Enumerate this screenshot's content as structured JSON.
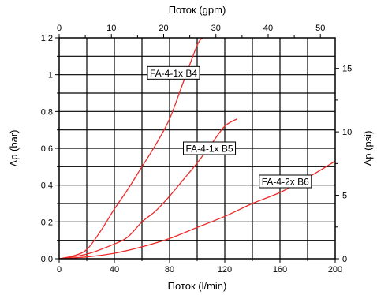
{
  "chart_data": {
    "type": "line",
    "xlabel_bottom": "Поток (l/min)",
    "xlabel_top": "Поток (gpm)",
    "ylabel_left": "Δp (bar)",
    "ylabel_right": "Δp (psi)",
    "xlim": [
      0,
      200
    ],
    "ylim": [
      0,
      1.2
    ],
    "x_ticks": [
      "0",
      "40",
      "80",
      "120",
      "160",
      "200"
    ],
    "y_ticks": [
      "0.0",
      "0.2",
      "0.4",
      "0.6",
      "0.8",
      "1",
      "1.2"
    ],
    "top_ticks": [
      "0",
      "10",
      "20",
      "30",
      "40",
      "50"
    ],
    "right_ticks": [
      "0",
      "5",
      "10",
      "15"
    ],
    "grid": true,
    "series": [
      {
        "name": "FA-4-1x B4",
        "color": "#ee2a2a",
        "points": [
          [
            0,
            0
          ],
          [
            10,
            0.015
          ],
          [
            20,
            0.05
          ],
          [
            30,
            0.15
          ],
          [
            40,
            0.27
          ],
          [
            50,
            0.38
          ],
          [
            60,
            0.5
          ],
          [
            70,
            0.62
          ],
          [
            80,
            0.76
          ],
          [
            90,
            0.96
          ],
          [
            100,
            1.16
          ],
          [
            104,
            1.2
          ]
        ]
      },
      {
        "name": "FA-4-1x B5",
        "color": "#ee2a2a",
        "points": [
          [
            0,
            0
          ],
          [
            20,
            0.025
          ],
          [
            40,
            0.08
          ],
          [
            50,
            0.12
          ],
          [
            60,
            0.2
          ],
          [
            70,
            0.26
          ],
          [
            80,
            0.34
          ],
          [
            90,
            0.43
          ],
          [
            100,
            0.52
          ],
          [
            110,
            0.62
          ],
          [
            120,
            0.72
          ],
          [
            129,
            0.76
          ]
        ]
      },
      {
        "name": "FA-4-2x B6",
        "color": "#ee2a2a",
        "points": [
          [
            0,
            0
          ],
          [
            20,
            0.01
          ],
          [
            40,
            0.03
          ],
          [
            60,
            0.065
          ],
          [
            80,
            0.11
          ],
          [
            100,
            0.17
          ],
          [
            120,
            0.23
          ],
          [
            140,
            0.3
          ],
          [
            160,
            0.36
          ],
          [
            180,
            0.44
          ],
          [
            200,
            0.53
          ]
        ]
      }
    ],
    "annotations": [
      {
        "text": "FA-4-1x B4",
        "x": 64,
        "y": 1.01
      },
      {
        "text": "FA-4-1x B5",
        "x": 90,
        "y": 0.6
      },
      {
        "text": "FA-4-2x B6",
        "x": 145,
        "y": 0.42
      }
    ]
  }
}
